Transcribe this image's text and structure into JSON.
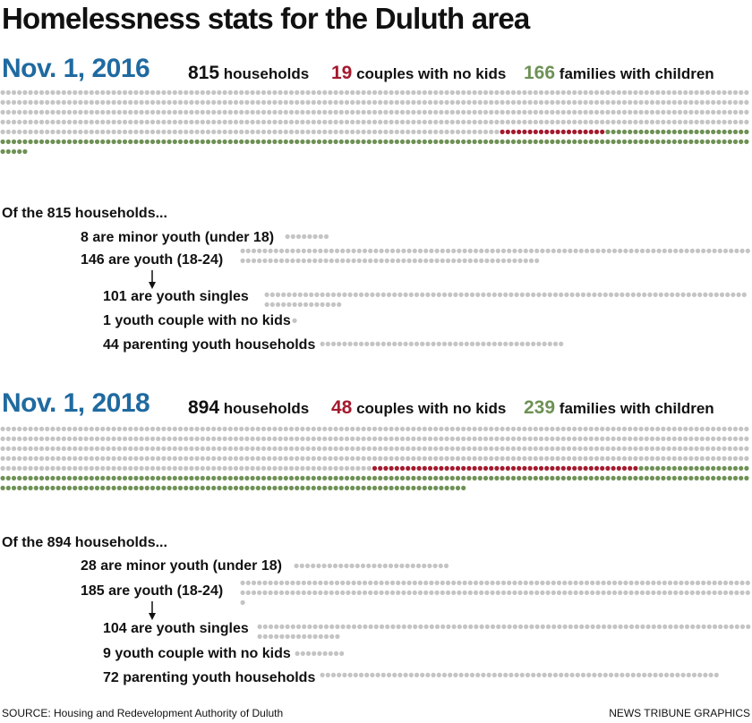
{
  "title": "Homelessness stats for the Duluth area",
  "colors": {
    "gray": "#c4c4c4",
    "red": "#a31a2e",
    "green": "#6e9155",
    "date": "#1f6aa0"
  },
  "chart_data": [
    {
      "type": "table",
      "date": "Nov. 1, 2016",
      "households_total": 815,
      "households_label": "households",
      "couples_no_kids": 19,
      "couples_label": "couples with no kids",
      "families_with_children": 166,
      "families_label": "families with children",
      "breakdown_title": "Of the 815 households...",
      "breakdown": [
        {
          "label": "8 are minor youth (under 18)",
          "value": 8,
          "indent": 0
        },
        {
          "label": "146 are youth (18-24)",
          "value": 146,
          "indent": 0
        },
        {
          "label": "101 are youth singles",
          "value": 101,
          "indent": 1
        },
        {
          "label": "1 youth couple with no kids",
          "value": 1,
          "indent": 1
        },
        {
          "label": "44 parenting youth households",
          "value": 44,
          "indent": 1
        }
      ]
    },
    {
      "type": "table",
      "date": "Nov. 1, 2018",
      "households_total": 894,
      "households_label": "households",
      "couples_no_kids": 48,
      "couples_label": "couples with no kids",
      "families_with_children": 239,
      "families_label": "families with children",
      "breakdown_title": "Of the 894 households...",
      "breakdown": [
        {
          "label": "28 are minor youth (under 18)",
          "value": 28,
          "indent": 0
        },
        {
          "label": "185 are youth (18-24)",
          "value": 185,
          "indent": 0
        },
        {
          "label": "104 are youth singles",
          "value": 104,
          "indent": 1
        },
        {
          "label": "9 youth couple with no kids",
          "value": 9,
          "indent": 1
        },
        {
          "label": "72 parenting youth households",
          "value": 72,
          "indent": 1
        }
      ]
    }
  ],
  "source": "SOURCE: Housing and Redevelopment Authority of Duluth",
  "credit": "NEWS TRIBUNE GRAPHICS"
}
